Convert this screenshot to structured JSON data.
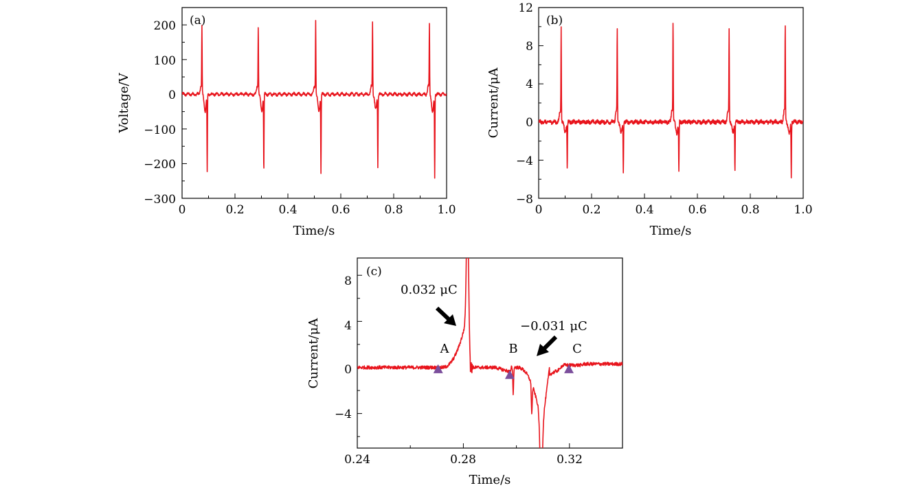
{
  "chart_data": [
    {
      "panel": "(a)",
      "type": "line",
      "xlabel": "Time/s",
      "ylabel": "Voltage/V",
      "xlim": [
        0,
        1.0
      ],
      "ylim": [
        -300,
        250
      ],
      "xticks": [
        "0",
        "0.2",
        "0.4",
        "0.6",
        "0.8",
        "1.0"
      ],
      "yticks": [
        "200",
        "100",
        "0",
        "−100",
        "−200",
        "−300"
      ],
      "color": "#e8141c",
      "series": [
        {
          "pulses": [
            {
              "pos_time": 0.075,
              "pos_peak": 190,
              "neg_time": 0.095,
              "neg_peak": -220
            },
            {
              "pos_time": 0.288,
              "pos_peak": 190,
              "neg_time": 0.309,
              "neg_peak": -222
            },
            {
              "pos_time": 0.505,
              "pos_peak": 205,
              "neg_time": 0.525,
              "neg_peak": -225
            },
            {
              "pos_time": 0.72,
              "pos_peak": 200,
              "neg_time": 0.74,
              "neg_peak": -205
            },
            {
              "pos_time": 0.935,
              "pos_peak": 193,
              "neg_time": 0.955,
              "neg_peak": -240
            }
          ]
        }
      ]
    },
    {
      "panel": "(b)",
      "type": "line",
      "xlabel": "Time/s",
      "ylabel": "Current/μA",
      "xlim": [
        0,
        1.0
      ],
      "ylim": [
        -8,
        12
      ],
      "xticks": [
        "0",
        "0.2",
        "0.4",
        "0.6",
        "0.8",
        "1.0"
      ],
      "yticks": [
        "12",
        "8",
        "4",
        "0",
        "−4",
        "−8"
      ],
      "color": "#e8141c",
      "series": [
        {
          "pulses": [
            {
              "pos_time": 0.085,
              "pos_peak": 9.5,
              "neg_time": 0.108,
              "neg_peak": -4.7
            },
            {
              "pos_time": 0.297,
              "pos_peak": 9.4,
              "neg_time": 0.32,
              "neg_peak": -5.3
            },
            {
              "pos_time": 0.508,
              "pos_peak": 10.2,
              "neg_time": 0.53,
              "neg_peak": -5.3
            },
            {
              "pos_time": 0.72,
              "pos_peak": 9.3,
              "neg_time": 0.742,
              "neg_peak": -5.1
            },
            {
              "pos_time": 0.932,
              "pos_peak": 9.7,
              "neg_time": 0.955,
              "neg_peak": -5.8
            }
          ]
        }
      ]
    },
    {
      "panel": "(c)",
      "type": "line",
      "xlabel": "Time/s",
      "ylabel": "Current/μA",
      "xlim": [
        0.24,
        0.34
      ],
      "ylim": [
        -7,
        9.5
      ],
      "xticks": [
        "0.24",
        "0.28",
        "0.32"
      ],
      "yticks": [
        "8",
        "4",
        "0",
        "−4"
      ],
      "color": "#e8141c",
      "marker_color": "#7b4e9c",
      "markers": [
        {
          "label": "A",
          "x": 0.2705,
          "y": -0.2
        },
        {
          "label": "B",
          "x": 0.2975,
          "y": -0.7
        },
        {
          "label": "C",
          "x": 0.3198,
          "y": -0.2
        }
      ],
      "annotations": [
        {
          "text": "0.032 μC"
        },
        {
          "text": "−0.031 μC"
        }
      ]
    }
  ]
}
